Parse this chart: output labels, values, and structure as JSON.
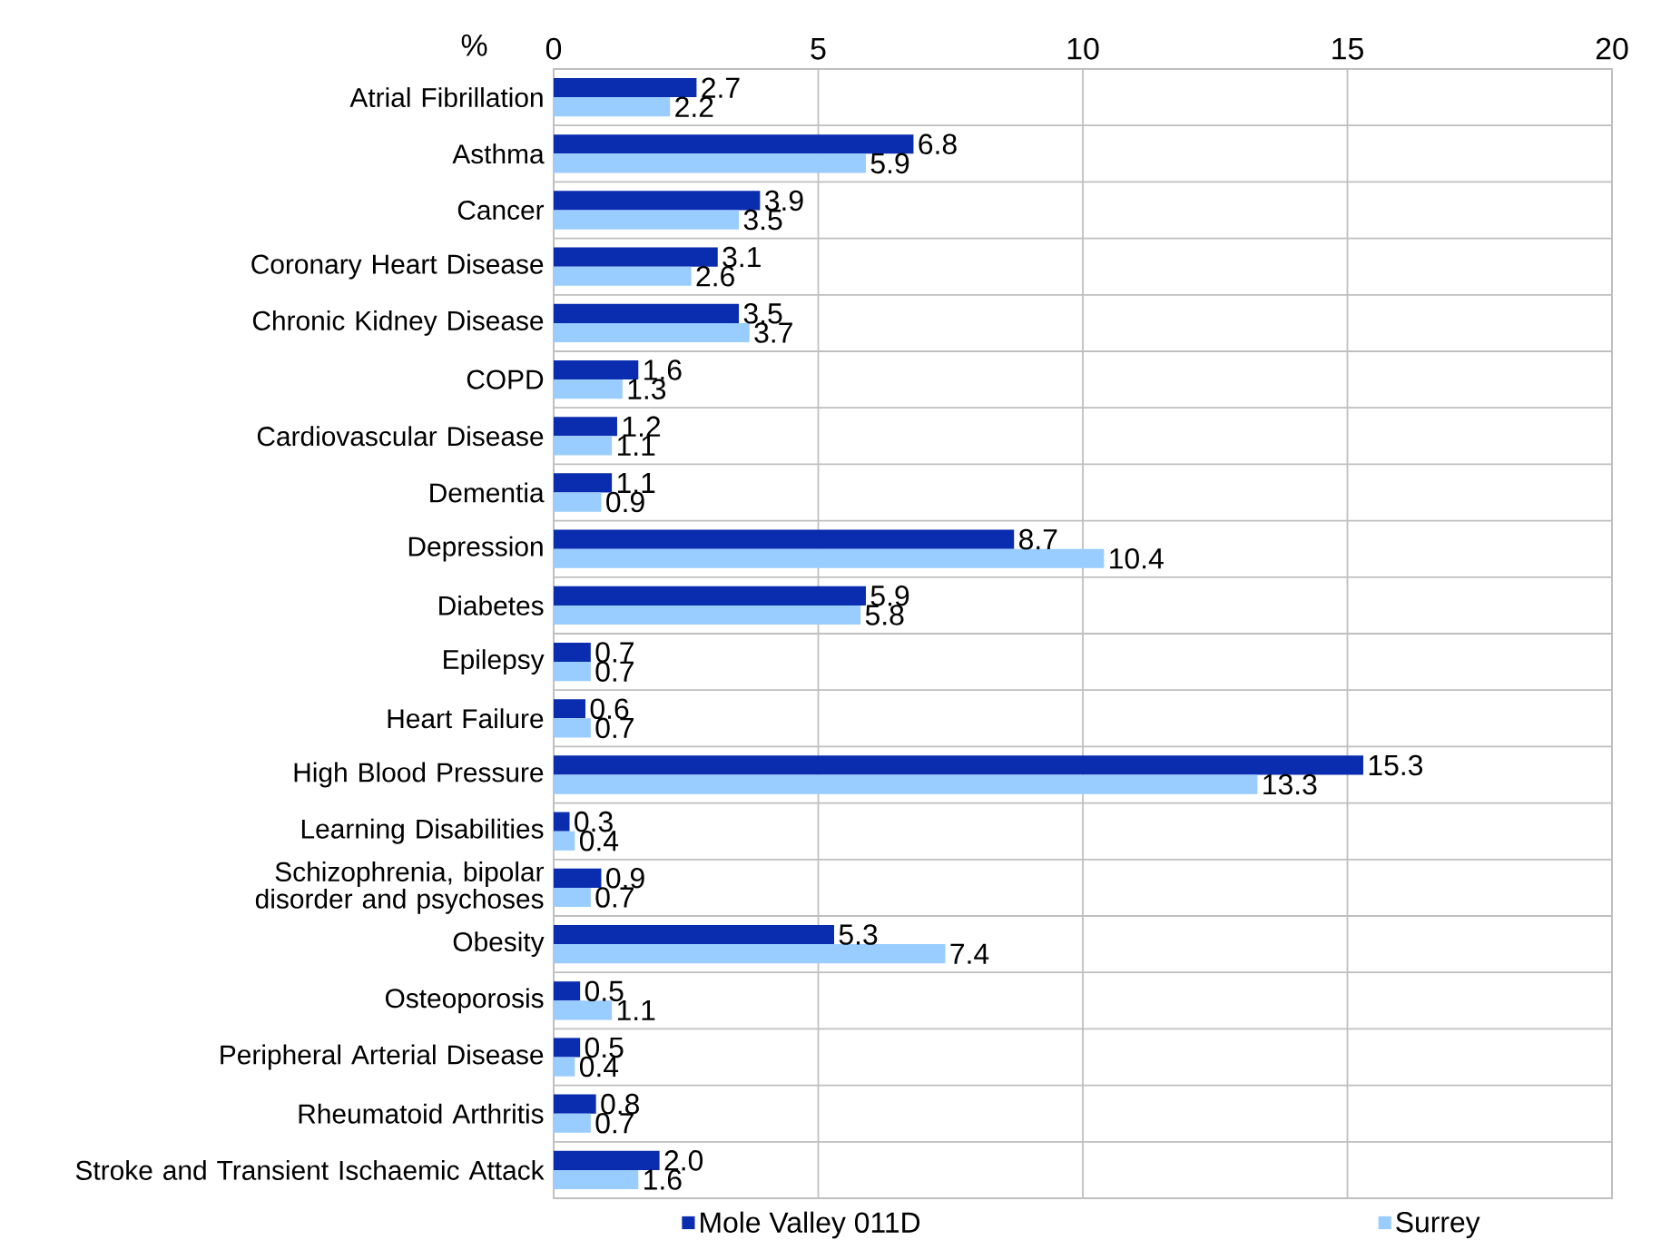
{
  "chart_data": {
    "type": "bar",
    "orientation": "horizontal",
    "xlabel": "%",
    "categories": [
      "Atrial Fibrillation",
      "Asthma",
      "Cancer",
      "Coronary Heart Disease",
      "Chronic Kidney Disease",
      "COPD",
      "Cardiovascular Disease",
      "Dementia",
      "Depression",
      "Diabetes",
      "Epilepsy",
      "Heart Failure",
      "High Blood Pressure",
      "Learning Disabilities",
      "Schizophrenia, bipolar disorder and psychoses",
      "Obesity",
      "Osteoporosis",
      "Peripheral Arterial Disease",
      "Rheumatoid Arthritis",
      "Stroke and Transient Ischaemic Attack"
    ],
    "series": [
      {
        "name": "Mole Valley 011D",
        "color": "#0a2db0",
        "values": [
          2.7,
          6.8,
          3.9,
          3.1,
          3.5,
          1.6,
          1.2,
          1.1,
          8.7,
          5.9,
          0.7,
          0.6,
          15.3,
          0.3,
          0.9,
          5.3,
          0.5,
          0.5,
          0.8,
          2.0
        ],
        "value_labels": [
          "2.7",
          "6.8",
          "3.9",
          "3.1",
          "3.5",
          "1.6",
          "1.2",
          "1.1",
          "8.7",
          "5.9",
          "0.7",
          "0.6",
          "15.3",
          "0.3",
          "0.9",
          "5.3",
          "0.5",
          "0.5",
          "0.8",
          "2.0"
        ]
      },
      {
        "name": "Surrey",
        "color": "#99ccff",
        "values": [
          2.2,
          5.9,
          3.5,
          2.6,
          3.7,
          1.3,
          1.1,
          0.9,
          10.4,
          5.8,
          0.7,
          0.7,
          13.3,
          0.4,
          0.7,
          7.4,
          1.1,
          0.4,
          0.7,
          1.6
        ],
        "value_labels": [
          "2.2",
          "5.9",
          "3.5",
          "2.6",
          "3.7",
          "1.3",
          "1.1",
          "0.9",
          "10.4",
          "5.8",
          "0.7",
          "0.7",
          "13.3",
          "0.4",
          "0.7",
          "7.4",
          "1.1",
          "0.4",
          "0.7",
          "1.6"
        ]
      }
    ],
    "xlim": [
      0,
      20
    ],
    "xticks": [
      0,
      5,
      10,
      15,
      20
    ],
    "grid": true,
    "legend": "bottom"
  }
}
